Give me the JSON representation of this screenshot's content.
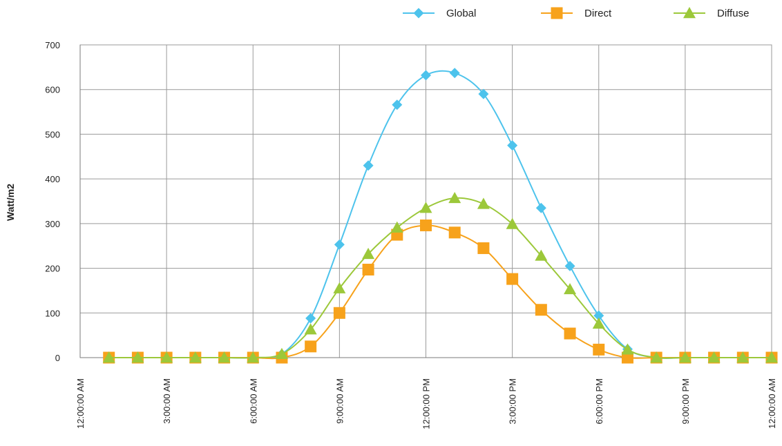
{
  "chart_data": {
    "type": "line",
    "title": "",
    "xlabel": "",
    "ylabel": "Watt/m2",
    "ylim": [
      0,
      700
    ],
    "y_ticks": [
      "0",
      "100",
      "200",
      "300",
      "400",
      "500",
      "600",
      "700"
    ],
    "x_ticks": [
      "12:00:00 AM",
      "3:00:00 AM",
      "6:00:00 AM",
      "9:00:00 AM",
      "12:00:00 PM",
      "3:00:00 PM",
      "6:00:00 PM",
      "9:00:00 PM",
      "12:00:00 AM"
    ],
    "x_hours": [
      1,
      2,
      3,
      4,
      5,
      6,
      7,
      8,
      9,
      10,
      11,
      12,
      13,
      14,
      15,
      16,
      17,
      18,
      19,
      20,
      21,
      22,
      23,
      24
    ],
    "grid": true,
    "legend_position": "top-right",
    "series": [
      {
        "name": "Global",
        "color": "#4DC3EC",
        "marker": "diamond",
        "values": [
          0,
          0,
          0,
          0,
          0,
          0,
          8,
          88,
          253,
          430,
          566,
          632,
          637,
          590,
          475,
          335,
          205,
          94,
          19,
          0,
          0,
          0,
          0,
          0
        ]
      },
      {
        "name": "Direct",
        "color": "#F7A21B",
        "marker": "square",
        "values": [
          0,
          0,
          0,
          0,
          0,
          0,
          0,
          25,
          100,
          197,
          275,
          296,
          280,
          245,
          176,
          107,
          54,
          18,
          0,
          0,
          0,
          0,
          0,
          0
        ]
      },
      {
        "name": "Diffuse",
        "color": "#9CC83A",
        "marker": "triangle",
        "values": [
          0,
          0,
          0,
          0,
          0,
          0,
          8,
          63,
          155,
          232,
          291,
          335,
          357,
          344,
          299,
          228,
          153,
          76,
          18,
          0,
          0,
          0,
          0,
          0
        ]
      }
    ]
  }
}
